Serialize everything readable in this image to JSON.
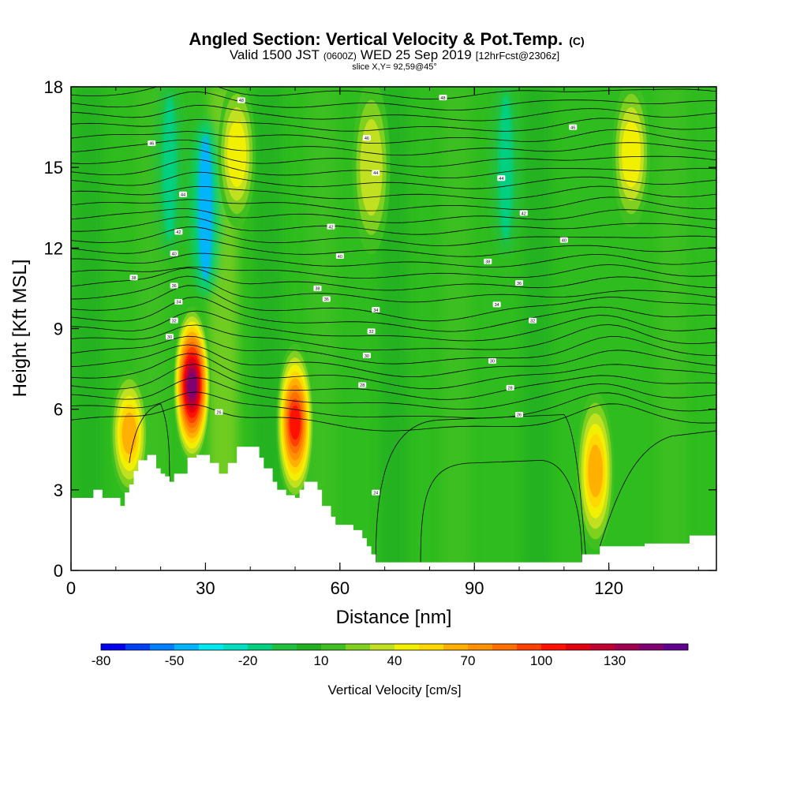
{
  "chart_data": {
    "type": "heatmap",
    "title": "Angled Section: Vertical Velocity & Pot.Temp.",
    "title_unit": "(C)",
    "subtitle_valid": "Valid 1500 JST",
    "subtitle_utc": "(0600Z)",
    "subtitle_date": "WED 25 Sep 2019",
    "subtitle_fcst": "[12hrFcst@2306z]",
    "slice": "slice X,Y= 92,59@45°",
    "xlabel": "Distance [nm]",
    "ylabel": "Height [Kft MSL]",
    "xlim": [
      0,
      144
    ],
    "ylim": [
      0,
      18
    ],
    "x_ticks": [
      0,
      30,
      60,
      90,
      120
    ],
    "y_ticks": [
      0,
      3,
      6,
      9,
      12,
      15,
      18
    ],
    "colorbar": {
      "title": "Vertical Velocity [cm/s]",
      "levels": [
        -80,
        -70,
        -60,
        -50,
        -40,
        -30,
        -20,
        -10,
        0,
        10,
        20,
        30,
        40,
        50,
        60,
        70,
        80,
        90,
        100,
        110,
        120,
        130,
        140,
        150
      ],
      "tick_labels": [
        "-80",
        "-50",
        "-20",
        "10",
        "40",
        "70",
        "100",
        "130"
      ],
      "tick_values": [
        -80,
        -50,
        -20,
        10,
        40,
        70,
        100,
        130
      ],
      "colors": [
        "#0000f0",
        "#0040f5",
        "#0080ff",
        "#00b4ff",
        "#00e8f0",
        "#00e0c0",
        "#00d080",
        "#20c040",
        "#20b020",
        "#40c020",
        "#80d020",
        "#c0e020",
        "#f0f000",
        "#ffd800",
        "#ffb000",
        "#ff9000",
        "#ff7000",
        "#ff4000",
        "#ff1000",
        "#e00010",
        "#c00030",
        "#a00050",
        "#800070",
        "#600090"
      ]
    },
    "updrafts": [
      {
        "x": 13,
        "z_low": 3.0,
        "z_high": 7.2,
        "w": 60
      },
      {
        "x": 27,
        "z_low": 4.2,
        "z_high": 9.6,
        "w": 140
      },
      {
        "x": 50,
        "z_low": 2.8,
        "z_high": 8.2,
        "w": 100
      },
      {
        "x": 117,
        "z_low": 1.0,
        "z_high": 6.4,
        "w": 60
      },
      {
        "x": 125,
        "z_low": 13.0,
        "z_high": 18.0,
        "w": 40
      },
      {
        "x": 37,
        "z_low": 13.0,
        "z_high": 18.0,
        "w": 40
      },
      {
        "x": 67,
        "z_low": 12.0,
        "z_high": 18.0,
        "w": 30
      }
    ],
    "downdrafts": [
      {
        "x": 30,
        "z_low": 10.5,
        "z_high": 16.5,
        "w": -50
      },
      {
        "x": 22,
        "z_low": 12.0,
        "z_high": 18.0,
        "w": -20
      },
      {
        "x": 97,
        "z_low": 12.0,
        "z_high": 18.0,
        "w": -20
      }
    ],
    "terrain_kft": [
      [
        0,
        2.7
      ],
      [
        5,
        3.0
      ],
      [
        7,
        2.7
      ],
      [
        10,
        2.7
      ],
      [
        11,
        2.4
      ],
      [
        12,
        2.9
      ],
      [
        13,
        3.2
      ],
      [
        14,
        3.7
      ],
      [
        15,
        4.1
      ],
      [
        17,
        4.3
      ],
      [
        19,
        3.8
      ],
      [
        20,
        3.6
      ],
      [
        21,
        3.5
      ],
      [
        22,
        3.3
      ],
      [
        23,
        3.6
      ],
      [
        25,
        3.6
      ],
      [
        26,
        4.2
      ],
      [
        28,
        4.3
      ],
      [
        31,
        4.0
      ],
      [
        33,
        3.6
      ],
      [
        35,
        4.0
      ],
      [
        37,
        4.6
      ],
      [
        41,
        4.6
      ],
      [
        42,
        4.2
      ],
      [
        43,
        3.8
      ],
      [
        45,
        3.3
      ],
      [
        46,
        3.0
      ],
      [
        48,
        2.8
      ],
      [
        50,
        2.7
      ],
      [
        51,
        3.0
      ],
      [
        52,
        3.3
      ],
      [
        55,
        3.0
      ],
      [
        56,
        2.4
      ],
      [
        58,
        2.0
      ],
      [
        59,
        1.7
      ],
      [
        63,
        1.5
      ],
      [
        65,
        1.2
      ],
      [
        66,
        0.9
      ],
      [
        67,
        0.6
      ],
      [
        68,
        0.3
      ],
      [
        78,
        0.3
      ],
      [
        113,
        0.3
      ],
      [
        114,
        0.6
      ],
      [
        116,
        0.6
      ],
      [
        118,
        0.9
      ],
      [
        121,
        0.9
      ],
      [
        124,
        0.9
      ],
      [
        128,
        1.0
      ],
      [
        129,
        1.0
      ],
      [
        133,
        1.0
      ],
      [
        137,
        1.0
      ],
      [
        138,
        1.3
      ],
      [
        144,
        1.3
      ]
    ],
    "theta_labels": [
      "48",
      "46",
      "44",
      "42",
      "40",
      "38",
      "36",
      "34",
      "32",
      "30",
      "28",
      "26",
      "24"
    ],
    "theta_label_marks": [
      {
        "x": 38,
        "z": 17.5,
        "t": "48"
      },
      {
        "x": 83,
        "z": 17.6,
        "t": "48"
      },
      {
        "x": 18,
        "z": 15.9,
        "t": "46"
      },
      {
        "x": 66,
        "z": 16.1,
        "t": "46"
      },
      {
        "x": 112,
        "z": 16.5,
        "t": "46"
      },
      {
        "x": 25,
        "z": 14.0,
        "t": "44"
      },
      {
        "x": 68,
        "z": 14.8,
        "t": "44"
      },
      {
        "x": 96,
        "z": 14.6,
        "t": "44"
      },
      {
        "x": 24,
        "z": 12.6,
        "t": "42"
      },
      {
        "x": 58,
        "z": 12.8,
        "t": "42"
      },
      {
        "x": 101,
        "z": 13.3,
        "t": "42"
      },
      {
        "x": 23,
        "z": 11.8,
        "t": "40"
      },
      {
        "x": 60,
        "z": 11.7,
        "t": "40"
      },
      {
        "x": 110,
        "z": 12.3,
        "t": "40"
      },
      {
        "x": 14,
        "z": 10.9,
        "t": "38"
      },
      {
        "x": 55,
        "z": 10.5,
        "t": "38"
      },
      {
        "x": 93,
        "z": 11.5,
        "t": "38"
      },
      {
        "x": 23,
        "z": 10.6,
        "t": "36"
      },
      {
        "x": 57,
        "z": 10.1,
        "t": "36"
      },
      {
        "x": 100,
        "z": 10.7,
        "t": "36"
      },
      {
        "x": 24,
        "z": 10.0,
        "t": "34"
      },
      {
        "x": 68,
        "z": 9.7,
        "t": "34"
      },
      {
        "x": 95,
        "z": 9.9,
        "t": "34"
      },
      {
        "x": 23,
        "z": 9.3,
        "t": "32"
      },
      {
        "x": 67,
        "z": 8.9,
        "t": "32"
      },
      {
        "x": 103,
        "z": 9.3,
        "t": "32"
      },
      {
        "x": 22,
        "z": 8.7,
        "t": "30"
      },
      {
        "x": 66,
        "z": 8.0,
        "t": "30"
      },
      {
        "x": 94,
        "z": 7.8,
        "t": "30"
      },
      {
        "x": 65,
        "z": 6.9,
        "t": "28"
      },
      {
        "x": 98,
        "z": 6.8,
        "t": "28"
      },
      {
        "x": 33,
        "z": 5.9,
        "t": "26"
      },
      {
        "x": 100,
        "z": 5.8,
        "t": "26"
      },
      {
        "x": 68,
        "z": 2.9,
        "t": "24"
      }
    ]
  }
}
